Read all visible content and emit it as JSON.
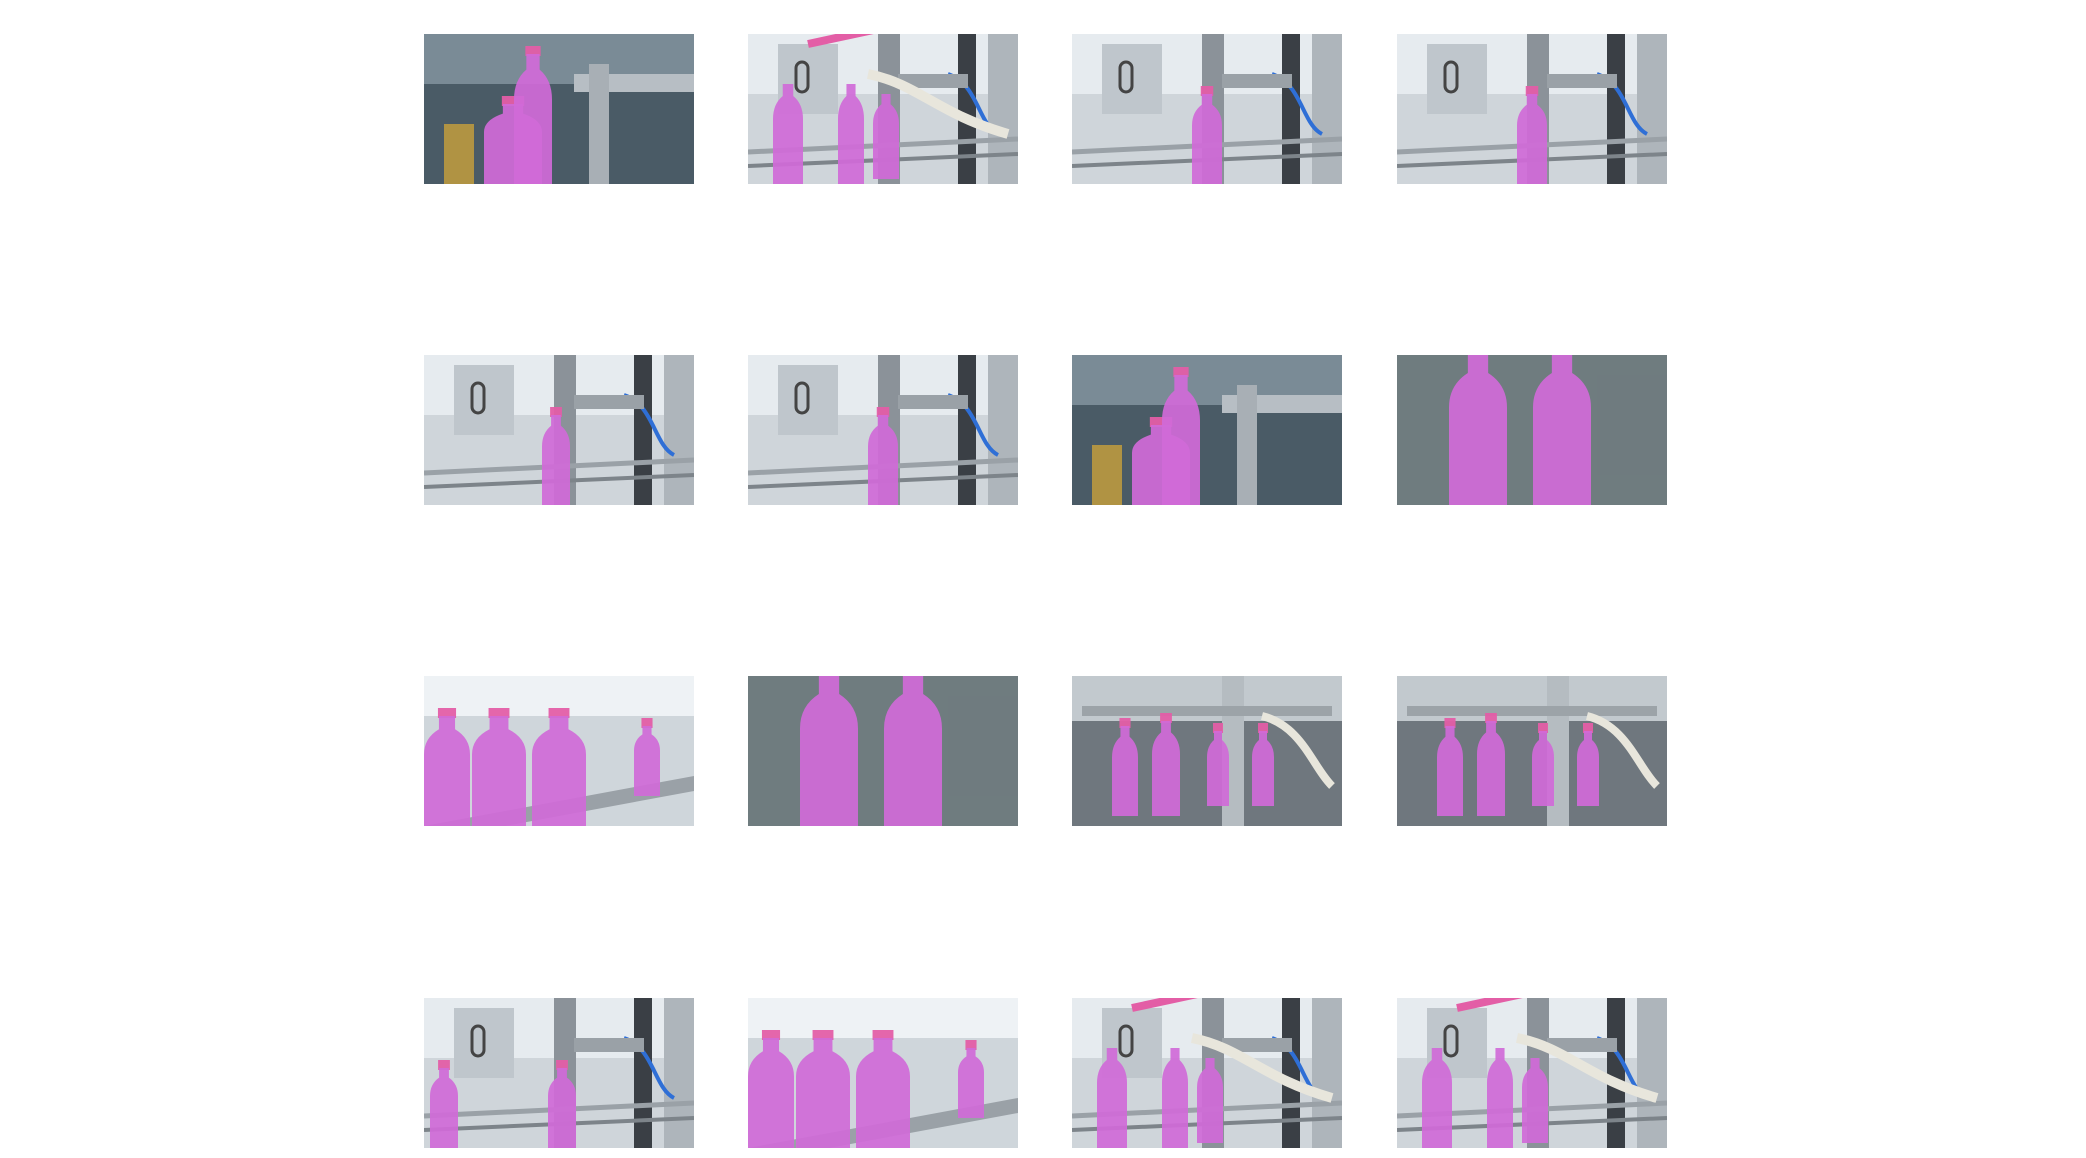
{
  "grid": {
    "rows": 4,
    "cols": 4,
    "tiles": [
      {
        "variant": "closeup-caps",
        "segment_color": "#d06ad8"
      },
      {
        "variant": "tube-arm",
        "segment_color": "#d06ad8"
      },
      {
        "variant": "single-center",
        "segment_color": "#d06ad8"
      },
      {
        "variant": "single-center",
        "segment_color": "#d06ad8"
      },
      {
        "variant": "single-left",
        "segment_color": "#d06ad8"
      },
      {
        "variant": "single-center",
        "segment_color": "#d06ad8"
      },
      {
        "variant": "closeup-caps",
        "segment_color": "#d06ad8"
      },
      {
        "variant": "two-large",
        "segment_color": "#d06ad8"
      },
      {
        "variant": "row-conveyor",
        "segment_color": "#d06ad8"
      },
      {
        "variant": "two-large",
        "segment_color": "#d06ad8"
      },
      {
        "variant": "multi-nozzle",
        "segment_color": "#d06ad8"
      },
      {
        "variant": "multi-nozzle",
        "segment_color": "#d06ad8"
      },
      {
        "variant": "single-right",
        "segment_color": "#d06ad8"
      },
      {
        "variant": "row-conveyor",
        "segment_color": "#d06ad8"
      },
      {
        "variant": "tube-arm",
        "segment_color": "#d06ad8"
      },
      {
        "variant": "tube-arm",
        "segment_color": "#d06ad8"
      }
    ]
  },
  "colors": {
    "background": "#ffffff",
    "machine_gray": "#8b9299",
    "machine_dark": "#3a3f45",
    "hose_blue": "#2f6fd6",
    "cap_pink": "#e35ea6",
    "mask_violet": "#d06ad8"
  }
}
